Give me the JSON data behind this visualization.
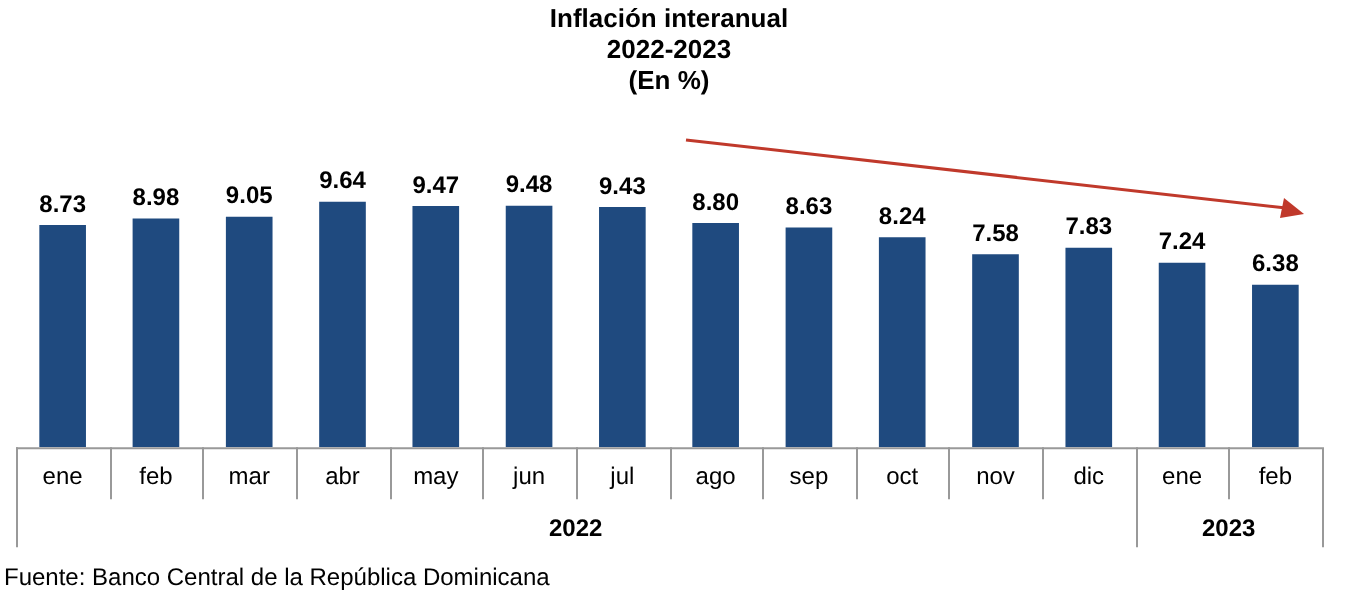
{
  "chart_data": {
    "type": "bar",
    "title": "Inflación interanual",
    "subtitle": "2022-2023",
    "ylabel": "(En %)",
    "categories": [
      "ene",
      "feb",
      "mar",
      "abr",
      "may",
      "jun",
      "jul",
      "ago",
      "sep",
      "oct",
      "nov",
      "dic",
      "ene",
      "feb"
    ],
    "values": [
      8.73,
      8.98,
      9.05,
      9.64,
      9.47,
      9.48,
      9.43,
      8.8,
      8.63,
      8.24,
      7.58,
      7.83,
      7.24,
      6.38
    ],
    "value_labels": [
      "8.73",
      "8.98",
      "9.05",
      "9.64",
      "9.47",
      "9.48",
      "9.43",
      "8.80",
      "8.63",
      "8.24",
      "7.58",
      "7.83",
      "7.24",
      "6.38"
    ],
    "color": "#1f4a7f",
    "grid": false,
    "legend": false,
    "annotations": [
      "2022",
      "2023",
      "Fuente: Banco Central de la República Dominicana"
    ]
  }
}
